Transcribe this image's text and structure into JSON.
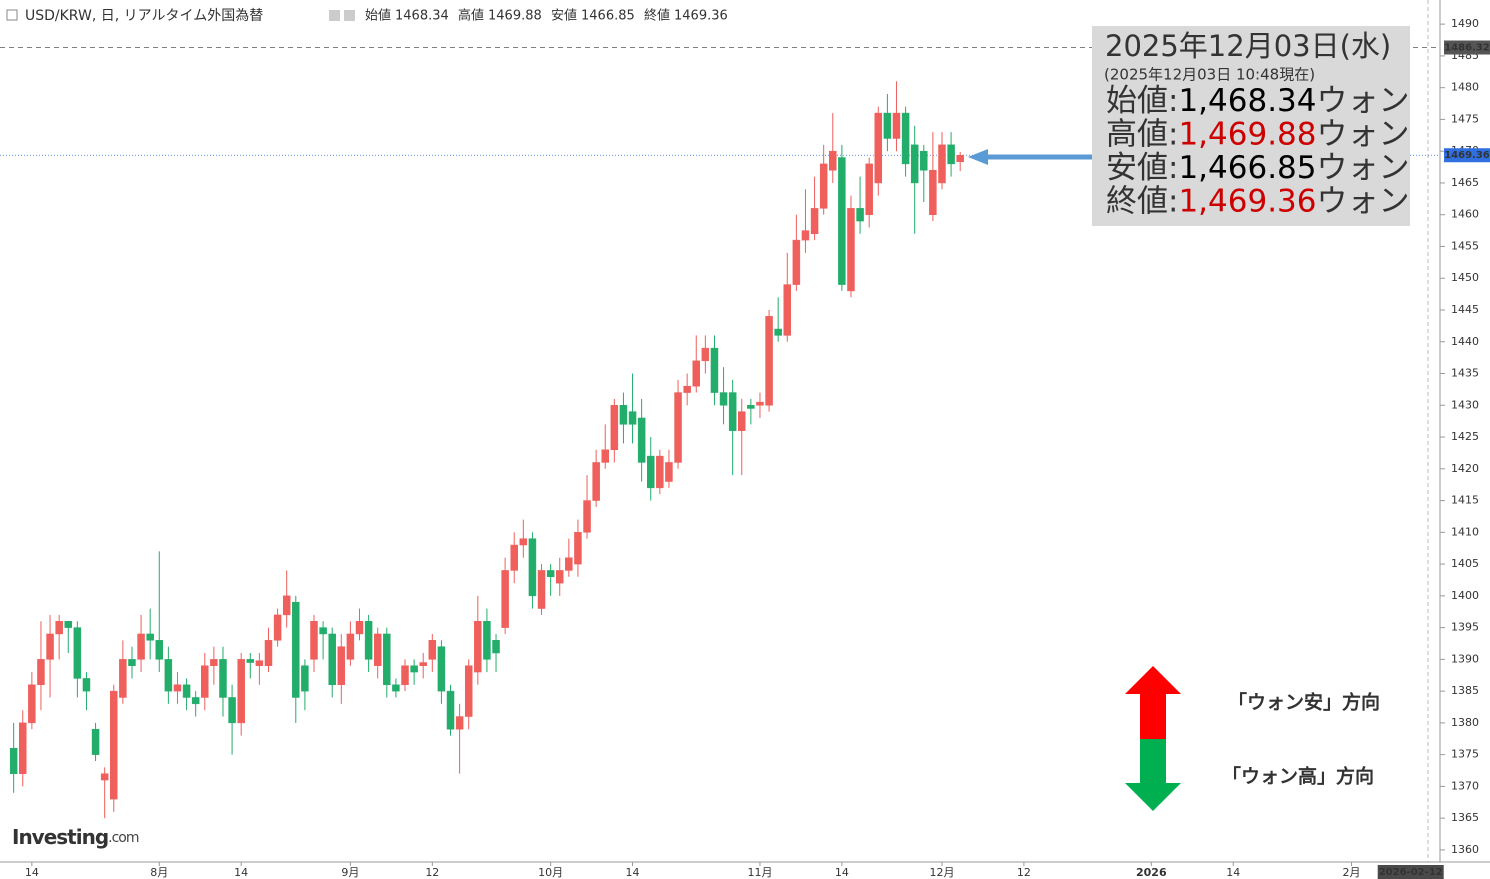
{
  "header": {
    "title": "USD/KRW, 日, リアルタイム外国為替",
    "ohlc": [
      {
        "label": "始値",
        "value": 1468.34
      },
      {
        "label": "高値",
        "value": 1469.88
      },
      {
        "label": "安値",
        "value": 1466.85
      },
      {
        "label": "終値",
        "value": 1469.36
      }
    ]
  },
  "chart_data": {
    "type": "candlestick",
    "up_color": "#ef5f5c",
    "down_color": "#22ad6b",
    "open": [
      1376,
      1372,
      1380,
      1386,
      1390,
      1394,
      1396,
      1395,
      1387,
      1379,
      1371,
      1368,
      1384,
      1390,
      1390,
      1394,
      1393,
      1390,
      1385,
      1386,
      1384,
      1384,
      1389,
      1390,
      1384,
      1380,
      1390,
      1389,
      1389,
      1393,
      1397,
      1399,
      1389,
      1390,
      1395,
      1394,
      1386,
      1390,
      1394,
      1396,
      1389,
      1394,
      1386,
      1386,
      1389,
      1389,
      1390,
      1392,
      1385,
      1379,
      1381,
      1388,
      1396,
      1393,
      1395,
      1404,
      1408,
      1409,
      1398,
      1404,
      1402,
      1404,
      1405,
      1410,
      1415,
      1421,
      1423,
      1430,
      1429,
      1428,
      1422,
      1417,
      1418,
      1421,
      1432,
      1433,
      1437,
      1439,
      1432,
      1432,
      1426,
      1430,
      1430,
      1430,
      1442,
      1441,
      1449,
      1456,
      1457,
      1461,
      1467,
      1469,
      1448,
      1461,
      1460,
      1465,
      1476,
      1472,
      1476,
      1471,
      1470,
      1460,
      1465,
      1471,
      1468.34
    ],
    "high": [
      1380,
      1382,
      1388,
      1396,
      1397,
      1397,
      1396,
      1396,
      1388,
      1380,
      1373,
      1386,
      1393,
      1392,
      1397,
      1398,
      1407,
      1392,
      1388,
      1387,
      1385,
      1391,
      1392,
      1392,
      1386,
      1391,
      1391,
      1391,
      1395,
      1398,
      1404,
      1400,
      1390,
      1397,
      1396,
      1395,
      1394,
      1396,
      1398,
      1397,
      1395,
      1395,
      1387,
      1390,
      1390,
      1391,
      1394,
      1393,
      1386,
      1383,
      1390,
      1400,
      1398,
      1394,
      1406,
      1410,
      1412,
      1410,
      1405,
      1405,
      1406,
      1409,
      1412,
      1419,
      1423,
      1427,
      1431,
      1432,
      1435,
      1431,
      1425,
      1423,
      1423,
      1434,
      1435,
      1441,
      1441,
      1441,
      1436,
      1434,
      1431,
      1431,
      1432,
      1445,
      1447,
      1454,
      1460,
      1464,
      1466,
      1471,
      1476,
      1471,
      1463,
      1466,
      1469,
      1477,
      1479,
      1481,
      1477,
      1474,
      1471,
      1473,
      1473,
      1473,
      1469.88
    ],
    "low": [
      1369,
      1370,
      1379,
      1382,
      1384,
      1390,
      1391,
      1384,
      1382,
      1374,
      1365,
      1366,
      1383,
      1387,
      1388,
      1390,
      1388,
      1383,
      1383,
      1382,
      1381,
      1382,
      1386,
      1381,
      1375,
      1378,
      1387,
      1386,
      1388,
      1392,
      1395,
      1380,
      1382,
      1388,
      1390,
      1384,
      1383,
      1389,
      1393,
      1388,
      1387,
      1384,
      1384,
      1385,
      1386,
      1387,
      1388,
      1383,
      1378,
      1372,
      1379,
      1386,
      1388,
      1388,
      1394,
      1402,
      1406,
      1398,
      1397,
      1400,
      1400,
      1403,
      1403,
      1409,
      1414,
      1420,
      1421,
      1424,
      1424,
      1418,
      1415,
      1416,
      1417,
      1420,
      1430,
      1432,
      1435,
      1430,
      1427,
      1419,
      1419,
      1427,
      1428,
      1429,
      1440,
      1440,
      1448,
      1454,
      1456,
      1460,
      1465,
      1448,
      1447,
      1457,
      1458,
      1463,
      1470,
      1470,
      1466,
      1457,
      1462,
      1459,
      1464,
      1466,
      1466.85
    ],
    "close": [
      1372,
      1380,
      1386,
      1390,
      1394,
      1396,
      1395,
      1387,
      1385,
      1375,
      1372,
      1385,
      1390,
      1389,
      1394,
      1393,
      1390,
      1385,
      1386,
      1384,
      1383,
      1389,
      1390,
      1384,
      1380,
      1390,
      1389.5,
      1389.8,
      1393,
      1397,
      1400,
      1384,
      1385,
      1396,
      1394,
      1386,
      1392,
      1394,
      1396,
      1390,
      1394,
      1386,
      1385,
      1389,
      1388,
      1389.5,
      1393,
      1385,
      1379,
      1381,
      1389,
      1396,
      1390,
      1391,
      1404,
      1408,
      1409,
      1400,
      1404,
      1403,
      1404,
      1406,
      1410,
      1415,
      1421,
      1423,
      1430,
      1427,
      1427,
      1421,
      1417,
      1422,
      1421,
      1432,
      1433,
      1437,
      1439,
      1432,
      1430,
      1426,
      1429,
      1429.5,
      1430.5,
      1444,
      1441,
      1449,
      1456,
      1457.5,
      1461,
      1468,
      1470,
      1449,
      1461,
      1459,
      1468,
      1476,
      1472,
      1476,
      1468,
      1465,
      1467,
      1467,
      1471,
      1468,
      1469.36
    ],
    "xlim": [
      -1.5,
      155.4
    ],
    "xticks": [
      {
        "value": 2,
        "label": "14"
      },
      {
        "value": 16,
        "label": "8月"
      },
      {
        "value": 25,
        "label": "14"
      },
      {
        "value": 37,
        "label": "9月"
      },
      {
        "value": 46,
        "label": "12"
      },
      {
        "value": 59,
        "label": "10月"
      },
      {
        "value": 68,
        "label": "14"
      },
      {
        "value": 82,
        "label": "11月"
      },
      {
        "value": 91,
        "label": "14"
      },
      {
        "value": 102,
        "label": "12月"
      },
      {
        "value": 111,
        "label": "12"
      },
      {
        "value": 125,
        "label": "2026"
      },
      {
        "value": 134,
        "label": "14"
      },
      {
        "value": 147,
        "label": "2月"
      }
    ],
    "x_cursor": {
      "value": 153.5,
      "label": "2026-02-12"
    },
    "ylim": [
      1358.1,
      1493.8
    ],
    "yticks": [
      1360,
      1365,
      1370,
      1375,
      1380,
      1385,
      1390,
      1395,
      1400,
      1405,
      1410,
      1415,
      1420,
      1425,
      1430,
      1435,
      1440,
      1445,
      1450,
      1455,
      1460,
      1465,
      1470,
      1475,
      1480,
      1485,
      1490
    ],
    "price_lines": [
      {
        "value": 1486.32,
        "style": "dashed",
        "color": "#555555"
      },
      {
        "value": 1469.36,
        "style": "dotted",
        "color": "#2f6fe0"
      }
    ]
  },
  "info_box": {
    "date": "2025年12月03日(水)",
    "time": "(2025年12月03日 10:48現在)",
    "highlight_color": "#cc0000",
    "rows": [
      {
        "label": "始値:",
        "value": "1,468.34",
        "unit": "ウォン",
        "highlight": false
      },
      {
        "label": "高値:",
        "value": "1,469.88",
        "unit": "ウォン",
        "highlight": true
      },
      {
        "label": "安値:",
        "value": "1,466.85",
        "unit": "ウォン",
        "highlight": false
      },
      {
        "label": "終値:",
        "value": "1,469.36",
        "unit": "ウォン",
        "highlight": true
      }
    ]
  },
  "annotations": [
    "「ウォン安」方向",
    "「ウォン高」方向"
  ],
  "logo": {
    "name": "Investing",
    "suffix": ".com"
  }
}
